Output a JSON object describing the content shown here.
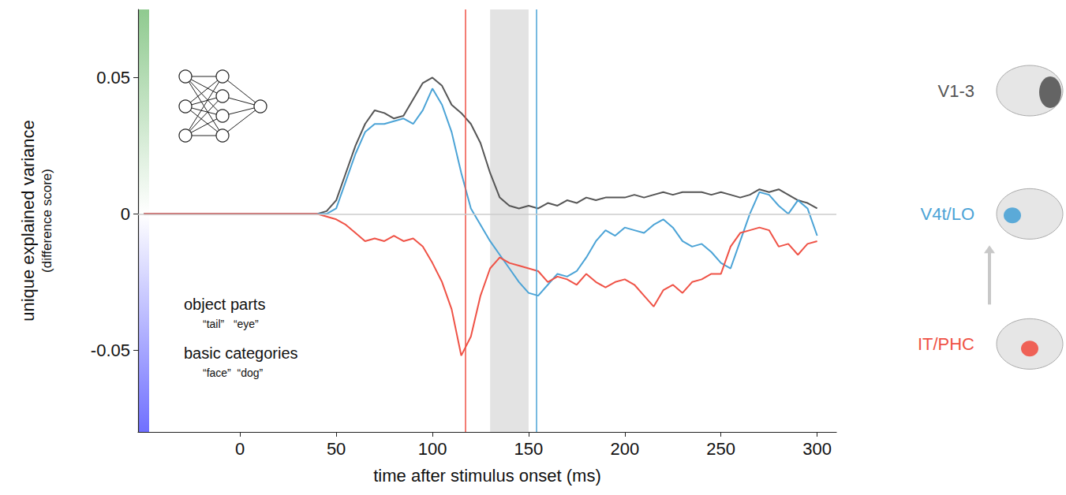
{
  "chart_data": {
    "type": "line",
    "x_label": "time after stimulus onset (ms)",
    "y_label": "unique explained variance",
    "y_label_sub": "(difference score)",
    "xlim": [
      -53,
      310
    ],
    "xticks": [
      0,
      50,
      100,
      150,
      200,
      250,
      300
    ],
    "ylim": [
      -0.08,
      0.075
    ],
    "yticks": [
      -0.05,
      0,
      0.05
    ],
    "grid": false,
    "legend": "right",
    "x": [
      -50,
      -45,
      -40,
      -35,
      -30,
      -25,
      -20,
      -15,
      -10,
      -5,
      0,
      5,
      10,
      15,
      20,
      25,
      30,
      35,
      40,
      45,
      50,
      55,
      60,
      65,
      70,
      75,
      80,
      85,
      90,
      95,
      100,
      105,
      110,
      115,
      120,
      125,
      130,
      135,
      140,
      145,
      150,
      155,
      160,
      165,
      170,
      175,
      180,
      185,
      190,
      195,
      200,
      205,
      210,
      215,
      220,
      225,
      230,
      235,
      240,
      245,
      250,
      255,
      260,
      265,
      270,
      275,
      280,
      285,
      290,
      295,
      300
    ],
    "series": [
      {
        "name": "V1-3",
        "color": "#555555",
        "values": [
          0,
          0,
          0,
          0,
          0,
          0,
          0,
          0,
          0,
          0,
          0,
          0,
          0,
          0,
          0,
          0,
          0,
          0,
          0,
          0.001,
          0.005,
          0.015,
          0.025,
          0.033,
          0.038,
          0.037,
          0.035,
          0.036,
          0.042,
          0.048,
          0.05,
          0.047,
          0.04,
          0.037,
          0.033,
          0.026,
          0.015,
          0.006,
          0.003,
          0.002,
          0.003,
          0.002,
          0.004,
          0.003,
          0.005,
          0.004,
          0.006,
          0.005,
          0.006,
          0.006,
          0.006,
          0.007,
          0.006,
          0.007,
          0.008,
          0.007,
          0.008,
          0.008,
          0.008,
          0.007,
          0.008,
          0.007,
          0.006,
          0.007,
          0.009,
          0.008,
          0.009,
          0.007,
          0.005,
          0.004,
          0.002
        ]
      },
      {
        "name": "V4t/LO",
        "color": "#4ba3d6",
        "values": [
          0,
          0,
          0,
          0,
          0,
          0,
          0,
          0,
          0,
          0,
          0,
          0,
          0,
          0,
          0,
          0,
          0,
          0,
          0,
          0,
          0.002,
          0.012,
          0.022,
          0.03,
          0.033,
          0.033,
          0.034,
          0.035,
          0.033,
          0.038,
          0.046,
          0.04,
          0.03,
          0.015,
          0.002,
          -0.004,
          -0.01,
          -0.015,
          -0.02,
          -0.025,
          -0.029,
          -0.03,
          -0.026,
          -0.022,
          -0.023,
          -0.021,
          -0.016,
          -0.01,
          -0.006,
          -0.008,
          -0.005,
          -0.006,
          -0.007,
          -0.004,
          -0.002,
          -0.005,
          -0.01,
          -0.012,
          -0.011,
          -0.014,
          -0.018,
          -0.02,
          -0.01,
          0.0,
          0.008,
          0.007,
          0.003,
          0.0,
          0.005,
          0.002,
          -0.008
        ]
      },
      {
        "name": "IT/PHC",
        "color": "#ef5246",
        "values": [
          0,
          0,
          0,
          0,
          0,
          0,
          0,
          0,
          0,
          0,
          0,
          0,
          0,
          0,
          0,
          0,
          0,
          0,
          0,
          -0.001,
          -0.002,
          -0.004,
          -0.007,
          -0.01,
          -0.009,
          -0.01,
          -0.008,
          -0.01,
          -0.009,
          -0.012,
          -0.018,
          -0.025,
          -0.035,
          -0.052,
          -0.045,
          -0.03,
          -0.02,
          -0.016,
          -0.018,
          -0.019,
          -0.02,
          -0.021,
          -0.025,
          -0.023,
          -0.024,
          -0.026,
          -0.022,
          -0.025,
          -0.027,
          -0.025,
          -0.024,
          -0.026,
          -0.03,
          -0.034,
          -0.028,
          -0.026,
          -0.029,
          -0.025,
          -0.024,
          -0.022,
          -0.022,
          -0.012,
          -0.007,
          -0.006,
          -0.005,
          -0.006,
          -0.012,
          -0.011,
          -0.015,
          -0.011,
          -0.01
        ]
      }
    ],
    "vlines": [
      {
        "x": 117,
        "color": "#ef5246"
      },
      {
        "x": 154,
        "color": "#4ba3d6"
      }
    ],
    "shaded_span": [
      130,
      150
    ],
    "annotations": [
      {
        "title": "object parts",
        "examples": "“tail”   “eye”"
      },
      {
        "title": "basic categories",
        "examples": "“face”  “dog”"
      }
    ]
  }
}
